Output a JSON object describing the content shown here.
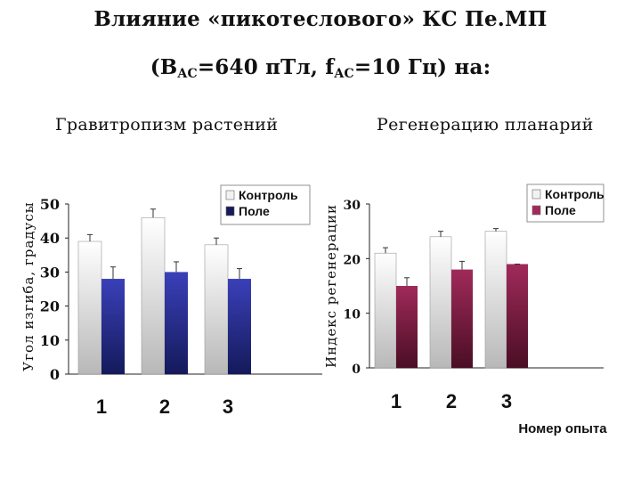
{
  "header": {
    "title_line1": "Влияние «пикотеслового» КС Пе.МП",
    "title_line2_part1": "(B",
    "title_line2_sub1": "AC",
    "title_line2_part2": "=640 пТл, f",
    "title_line2_sub2": "AC",
    "title_line2_part3": "=10 Гц) на:"
  },
  "panels": {
    "left_title": "Гравитропизм растений",
    "right_title": "Регенерацию планарий"
  },
  "colors": {
    "control_light": "#ffffff",
    "control_dark": "#b8b8b8",
    "field_left_light": "#3a40b8",
    "field_left_dark": "#141a5a",
    "field_right_light": "#a02a5a",
    "field_right_dark": "#4a0e24"
  },
  "chart_data": [
    {
      "type": "bar",
      "categories": [
        "1",
        "2",
        "3"
      ],
      "ylabel": "Угол изгиба, градусы",
      "xlabel": "",
      "ylim": [
        0,
        50
      ],
      "yticks": [
        "0",
        "10",
        "20",
        "30",
        "40",
        "50"
      ],
      "legend_position": "top-right",
      "series": [
        {
          "name": "Контроль",
          "values": [
            39,
            46,
            38
          ],
          "errors": [
            2,
            2.5,
            2
          ]
        },
        {
          "name": "Поле",
          "values": [
            28,
            30,
            28
          ],
          "errors": [
            3.5,
            3,
            3
          ]
        }
      ]
    },
    {
      "type": "bar",
      "categories": [
        "1",
        "2",
        "3"
      ],
      "ylabel": "Индекс регенерации",
      "xlabel": "Номер опыта",
      "ylim": [
        0,
        30
      ],
      "yticks": [
        "0",
        "10",
        "20",
        "30"
      ],
      "legend_position": "top-right",
      "series": [
        {
          "name": "Контроль",
          "values": [
            21,
            24,
            25
          ],
          "errors": [
            1,
            1,
            0.5
          ]
        },
        {
          "name": "Поле",
          "values": [
            15,
            18,
            19
          ],
          "errors": [
            1.5,
            1.5,
            0
          ]
        }
      ]
    }
  ]
}
